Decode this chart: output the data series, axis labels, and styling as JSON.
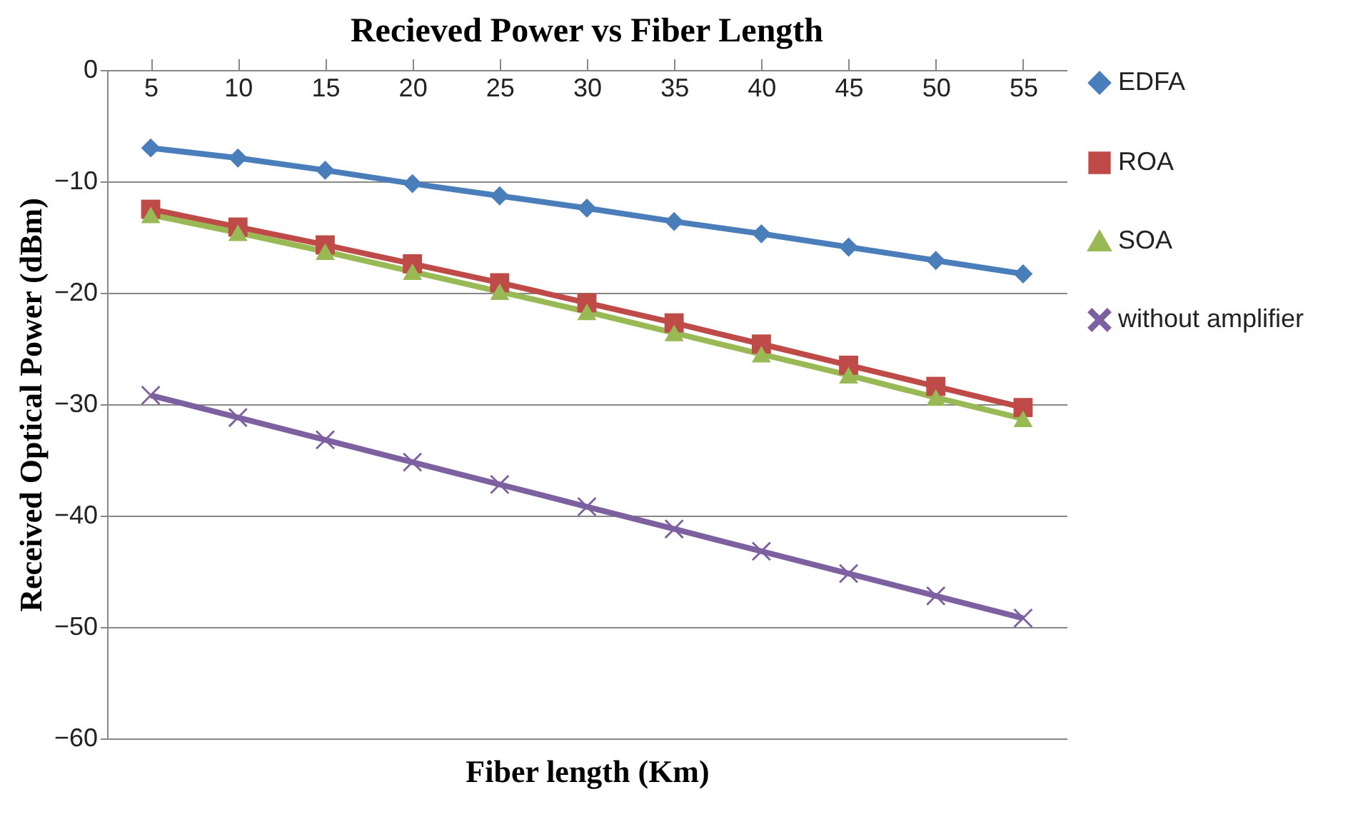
{
  "chart_data": {
    "type": "line",
    "title": "Recieved Power vs Fiber Length",
    "xlabel": "Fiber length (Km)",
    "ylabel": "Received Optical Power (dBm)",
    "categories": [
      "5",
      "10",
      "15",
      "20",
      "25",
      "30",
      "35",
      "40",
      "45",
      "50",
      "55"
    ],
    "series": [
      {
        "name": "EDFA",
        "color": "#4a7ebb",
        "marker": "diamond",
        "values": [
          -7,
          -7.9,
          -9,
          -10.2,
          -11.3,
          -12.4,
          -13.6,
          -14.7,
          -15.9,
          -17.1,
          -18.3
        ]
      },
      {
        "name": "ROA",
        "color": "#be4b48",
        "marker": "square",
        "values": [
          -12.5,
          -14.1,
          -15.7,
          -17.4,
          -19.1,
          -20.9,
          -22.7,
          -24.6,
          -26.5,
          -28.4,
          -30.3
        ]
      },
      {
        "name": "SOA",
        "color": "#98b954",
        "marker": "triangle",
        "values": [
          -13,
          -14.6,
          -16.3,
          -18.1,
          -19.9,
          -21.7,
          -23.6,
          -25.5,
          -27.4,
          -29.4,
          -31.3
        ]
      },
      {
        "name": "without amplifier",
        "color": "#7d60a0",
        "marker": "cross",
        "values": [
          -29.2,
          -31.2,
          -33.2,
          -35.2,
          -37.2,
          -39.2,
          -41.2,
          -43.2,
          -45.2,
          -47.2,
          -49.2
        ]
      }
    ],
    "ylim": [
      -60,
      0
    ],
    "yticks": [
      -60,
      -50,
      -40,
      -30,
      -20,
      -10,
      0
    ],
    "grid": "y",
    "legend": "right"
  }
}
